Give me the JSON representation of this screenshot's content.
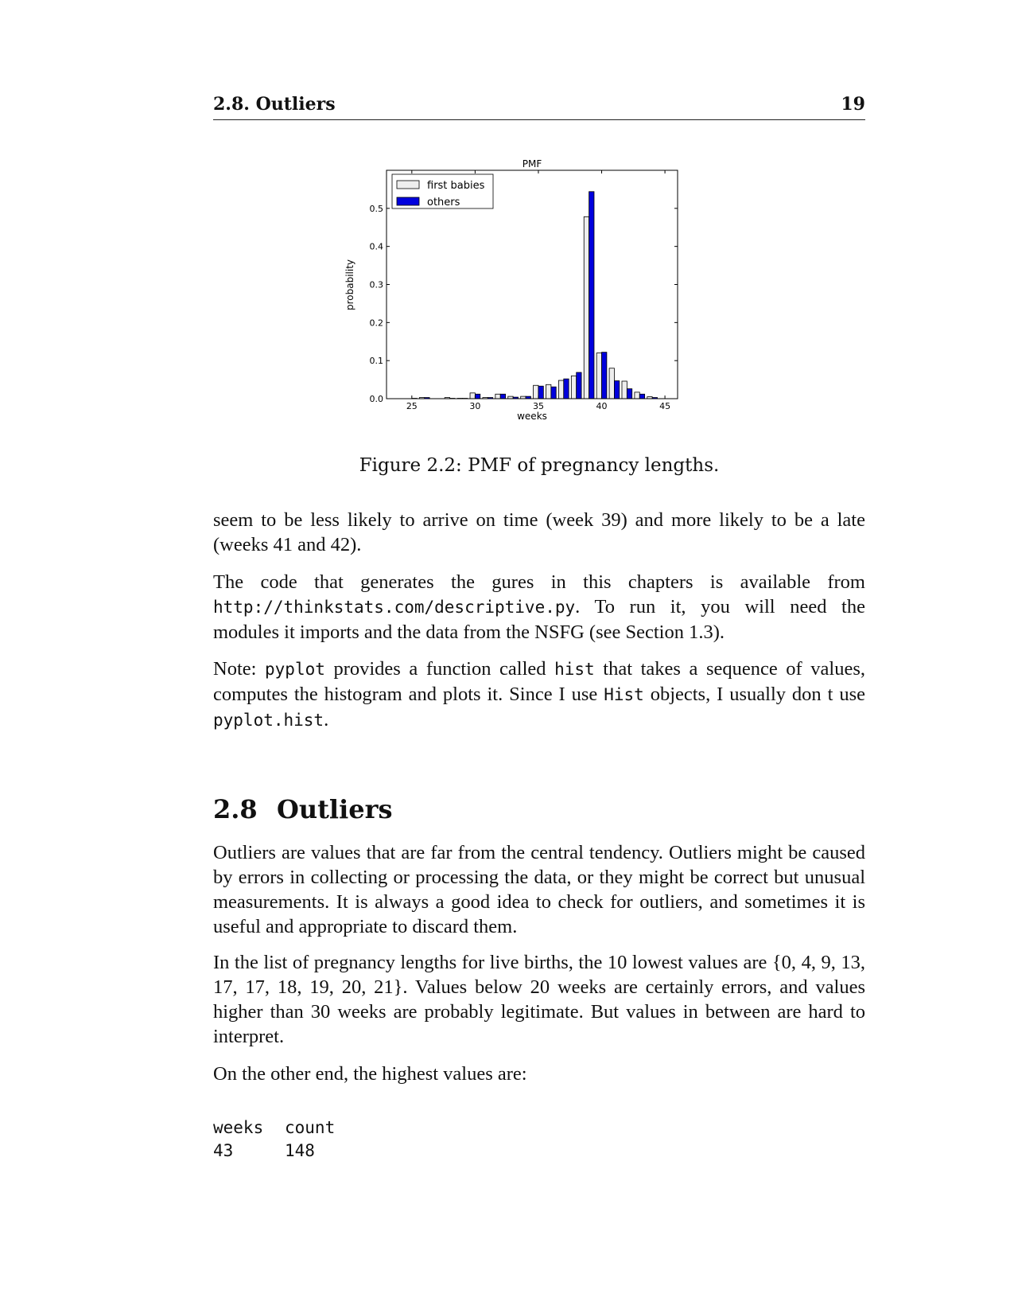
{
  "header": {
    "section": "2.8. Outliers",
    "page_number": "19"
  },
  "figure": {
    "caption": "Figure 2.2: PMF of pregnancy lengths."
  },
  "chart_data": {
    "type": "bar",
    "title": "PMF",
    "xlabel": "weeks",
    "ylabel": "probability",
    "xlim": [
      23,
      46
    ],
    "ylim": [
      0,
      0.6
    ],
    "xticks": [
      "25",
      "30",
      "35",
      "40",
      "45"
    ],
    "yticks": [
      "0.0",
      "0.1",
      "0.2",
      "0.3",
      "0.4",
      "0.5"
    ],
    "legend_position": "top-left",
    "x": [
      25,
      26,
      27,
      28,
      29,
      30,
      31,
      32,
      33,
      34,
      35,
      36,
      37,
      38,
      39,
      40,
      41,
      42,
      43,
      44
    ],
    "series": [
      {
        "name": "first babies",
        "color": "#eeeeee",
        "values": [
          0.0,
          0.003,
          0.0,
          0.003,
          0.001,
          0.015,
          0.003,
          0.012,
          0.006,
          0.006,
          0.035,
          0.037,
          0.048,
          0.06,
          0.478,
          0.12,
          0.08,
          0.046,
          0.017,
          0.005
        ]
      },
      {
        "name": "others",
        "color": "#0000dd",
        "values": [
          0.001,
          0.003,
          0.0,
          0.001,
          0.001,
          0.012,
          0.003,
          0.012,
          0.004,
          0.006,
          0.033,
          0.031,
          0.052,
          0.069,
          0.544,
          0.122,
          0.047,
          0.026,
          0.012,
          0.003
        ]
      }
    ]
  },
  "paragraphs": {
    "p1": "seem to be less likely to arrive on time (week 39) and more likely to be a late (weeks 41 and 42).",
    "p2_a": "The code that generates the  gures in this chapters is available from ",
    "p2_url": "http://thinkstats.com/descriptive.py",
    "p2_b": ". To run it, you will need the modules it imports and the data from the NSFG (see Section 1.3).",
    "p3_a": "Note: ",
    "p3_code1": "pyplot",
    "p3_b": " provides a function called ",
    "p3_code2": "hist",
    "p3_c": " that takes a sequence of values, computes the histogram and plots it. Since I use ",
    "p3_code3": "Hist",
    "p3_d": " objects, I usually don t use ",
    "p3_code4": "pyplot.hist",
    "p3_e": ".",
    "p4": "Outliers are values that are far from the central tendency. Outliers might be caused by errors in collecting or processing the data, or they might be correct but unusual measurements. It is always a good idea to check for outliers, and sometimes it is useful and appropriate to discard them.",
    "p5": "In the list of pregnancy lengths for live births, the 10 lowest values are {0, 4, 9, 13, 17, 17, 18, 19, 20, 21}. Values below 20 weeks are certainly errors, and values higher than 30 weeks are probably legitimate. But values in between are hard to interpret.",
    "p6": "On the other end, the highest values are:"
  },
  "section": {
    "number": "2.8",
    "title": "Outliers"
  },
  "table": {
    "headers": [
      "weeks",
      "count"
    ],
    "rows": [
      [
        "43",
        "148"
      ]
    ]
  }
}
